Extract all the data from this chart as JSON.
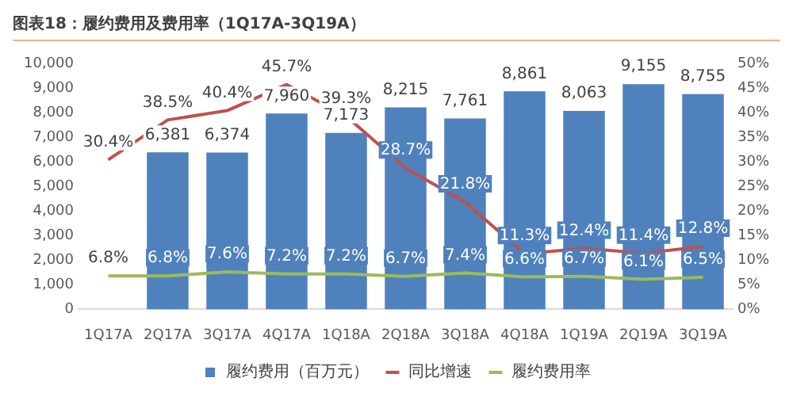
{
  "chart_data": {
    "type": "bar",
    "title": "图表18：履约费用及费用率（1Q17A-3Q19A）",
    "categories": [
      "1Q17A",
      "2Q17A",
      "3Q17A",
      "4Q17A",
      "1Q18A",
      "2Q18A",
      "3Q18A",
      "4Q18A",
      "1Q19A",
      "2Q19A",
      "3Q19A"
    ],
    "series": [
      {
        "name": "履约费用（百万元）",
        "color": "#4f81bd",
        "values": [
          null,
          6381,
          6374,
          7960,
          7173,
          8215,
          7761,
          8861,
          8063,
          9155,
          8755
        ],
        "value_labels": [
          null,
          "6,381",
          "6,374",
          "7,960",
          "7,173",
          "8,215",
          "7,761",
          "8,861",
          "8,063",
          "9,155",
          "8,755"
        ]
      },
      {
        "name": "同比增速",
        "type": "line",
        "axis": "y2",
        "color": "#c0504d",
        "values": [
          30.4,
          38.5,
          40.4,
          45.7,
          39.3,
          28.7,
          21.8,
          11.3,
          12.4,
          11.4,
          12.8
        ],
        "value_labels": [
          "30.4%",
          "38.5%",
          "40.4%",
          "45.7%",
          "39.3%",
          "28.7%",
          "21.8%",
          "11.3%",
          "12.4%",
          "11.4%",
          "12.8%"
        ]
      },
      {
        "name": "履约费用率",
        "type": "line",
        "axis": "y2",
        "color": "#9bbb59",
        "values": [
          6.8,
          6.8,
          7.6,
          7.2,
          7.2,
          6.7,
          7.4,
          6.6,
          6.7,
          6.1,
          6.5
        ],
        "value_labels": [
          "6.8%",
          "6.8%",
          "7.6%",
          "7.2%",
          "7.2%",
          "6.7%",
          "7.4%",
          "6.6%",
          "6.7%",
          "6.1%",
          "6.5%"
        ]
      }
    ],
    "ylim": [
      0,
      10000
    ],
    "yticks": [
      0,
      {
        "value": 1000,
        "label": "1,000"
      },
      {
        "value": 2000,
        "label": "2,000"
      },
      {
        "value": 3000,
        "label": "3,000"
      },
      {
        "value": 4000,
        "label": "4,000"
      },
      {
        "value": 5000,
        "label": "5,000"
      },
      {
        "value": 6000,
        "label": "6,000"
      },
      {
        "value": 7000,
        "label": "7,000"
      },
      {
        "value": 8000,
        "label": "8,000"
      },
      {
        "value": 9000,
        "label": "9,000"
      },
      {
        "value": 10000,
        "label": "10,000"
      }
    ],
    "y2lim": [
      0,
      50
    ],
    "y2ticks": [
      {
        "value": 0,
        "label": "0%"
      },
      {
        "value": 5,
        "label": "5%"
      },
      {
        "value": 10,
        "label": "10%"
      },
      {
        "value": 15,
        "label": "15%"
      },
      {
        "value": 20,
        "label": "20%"
      },
      {
        "value": 25,
        "label": "25%"
      },
      {
        "value": 30,
        "label": "30%"
      },
      {
        "value": 35,
        "label": "35%"
      },
      {
        "value": 40,
        "label": "40%"
      },
      {
        "value": 45,
        "label": "45%"
      },
      {
        "value": 50,
        "label": "50%"
      }
    ],
    "legend": "bottom"
  }
}
